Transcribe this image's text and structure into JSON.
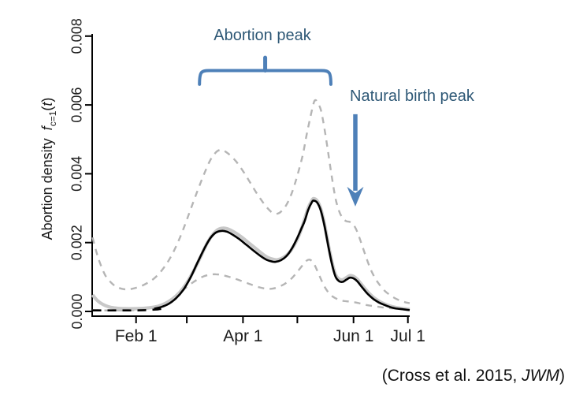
{
  "colors": {
    "accent_text": "#2E5876",
    "accent_shape": "#4E80B8",
    "curve_black": "#000000",
    "curve_gray_mean": "#C8C8C8",
    "ci_dashed_gray": "#B5B5B5",
    "axis": "#000000",
    "tick_label": "#1b1b1b"
  },
  "y_axis": {
    "title": "Abortion density",
    "math_f": "f",
    "math_sub": "c=1",
    "math_open": "(",
    "math_t": "t",
    "math_close": ")",
    "ticks": [
      {
        "value": 0.0,
        "label": "0.000"
      },
      {
        "value": 0.002,
        "label": "0.002"
      },
      {
        "value": 0.004,
        "label": "0.004"
      },
      {
        "value": 0.006,
        "label": "0.006"
      },
      {
        "value": 0.008,
        "label": "0.008"
      }
    ],
    "range": [
      0,
      0.008
    ]
  },
  "x_axis": {
    "ticks": [
      {
        "day": 32,
        "label": "Feb 1"
      },
      {
        "day": 60,
        "label": ""
      },
      {
        "day": 91,
        "label": "Apr 1"
      },
      {
        "day": 121,
        "label": ""
      },
      {
        "day": 152,
        "label": "Jun 1"
      },
      {
        "day": 182,
        "label": "Jul 1"
      }
    ],
    "range_days": [
      8,
      183
    ]
  },
  "annotations": {
    "abortion_peak": {
      "label": "Abortion peak",
      "span_days": [
        67,
        139.5
      ],
      "bar_value": 0.007,
      "end_value": 0.0066,
      "nub_value": 0.00742
    },
    "natural_birth_peak": {
      "label": "Natural birth peak",
      "arrow_day": 153,
      "arrow_from_value": 0.00573,
      "arrow_to_value": 0.00305
    }
  },
  "citation": {
    "prefix": "(Cross et al. 2015, ",
    "journal": "JWM",
    "suffix": ")"
  },
  "chart_data": {
    "type": "line",
    "title": "",
    "xlabel": "",
    "ylabel": "Abortion density f_c=1(t)",
    "x_units": "day of year",
    "ylim": [
      0,
      0.008
    ],
    "grid": false,
    "legend": "none",
    "series": [
      {
        "name": "upper_95ci",
        "style": "dashed",
        "color_key": "ci_dashed_gray",
        "width": 2.4,
        "points": [
          [
            8,
            0.00215
          ],
          [
            10,
            0.00175
          ],
          [
            12,
            0.00142
          ],
          [
            15,
            0.00105
          ],
          [
            18,
            0.00085
          ],
          [
            21,
            0.00072
          ],
          [
            24,
            0.00066
          ],
          [
            27,
            0.00064
          ],
          [
            30,
            0.00066
          ],
          [
            34,
            0.00072
          ],
          [
            38,
            0.00082
          ],
          [
            42,
            0.00096
          ],
          [
            46,
            0.00118
          ],
          [
            50,
            0.00148
          ],
          [
            54,
            0.00188
          ],
          [
            58,
            0.00238
          ],
          [
            62,
            0.00295
          ],
          [
            66,
            0.00352
          ],
          [
            70,
            0.00405
          ],
          [
            73,
            0.0044
          ],
          [
            76,
            0.00462
          ],
          [
            78,
            0.00469
          ],
          [
            80,
            0.00468
          ],
          [
            83,
            0.00458
          ],
          [
            87,
            0.00437
          ],
          [
            91,
            0.00408
          ],
          [
            95,
            0.00374
          ],
          [
            99,
            0.0034
          ],
          [
            103,
            0.0031
          ],
          [
            106,
            0.00292
          ],
          [
            108,
            0.00285
          ],
          [
            110,
            0.00284
          ],
          [
            112,
            0.0029
          ],
          [
            115,
            0.0031
          ],
          [
            118,
            0.00345
          ],
          [
            121,
            0.00395
          ],
          [
            124,
            0.00455
          ],
          [
            126,
            0.0051
          ],
          [
            128,
            0.0056
          ],
          [
            130,
            0.00605
          ],
          [
            131,
            0.00614
          ],
          [
            132,
            0.00608
          ],
          [
            134,
            0.00585
          ],
          [
            136,
            0.0053
          ],
          [
            138,
            0.00462
          ],
          [
            140,
            0.00392
          ],
          [
            142,
            0.0033
          ],
          [
            144,
            0.00292
          ],
          [
            146,
            0.00271
          ],
          [
            148,
            0.00262
          ],
          [
            150,
            0.0026
          ],
          [
            152,
            0.00252
          ],
          [
            154,
            0.00232
          ],
          [
            156,
            0.00203
          ],
          [
            158,
            0.00172
          ],
          [
            160,
            0.00142
          ],
          [
            162,
            0.00116
          ],
          [
            164,
            0.00096
          ],
          [
            166,
            0.0008
          ],
          [
            169,
            0.00061
          ],
          [
            172,
            0.00048
          ],
          [
            175,
            0.00038
          ],
          [
            178,
            0.00031
          ],
          [
            181,
            0.00026
          ],
          [
            183,
            0.00024
          ]
        ]
      },
      {
        "name": "lower_95ci",
        "style": "dashed",
        "color_key": "ci_dashed_gray",
        "width": 2.4,
        "points": [
          [
            8,
            4e-05
          ],
          [
            14,
            3e-05
          ],
          [
            20,
            3e-05
          ],
          [
            26,
            3e-05
          ],
          [
            32,
            4e-05
          ],
          [
            38,
            7e-05
          ],
          [
            43,
            0.00013
          ],
          [
            48,
            0.00024
          ],
          [
            53,
            0.0004
          ],
          [
            58,
            0.00062
          ],
          [
            63,
            0.00083
          ],
          [
            68,
            0.00099
          ],
          [
            72,
            0.00106
          ],
          [
            76,
            0.00108
          ],
          [
            80,
            0.00105
          ],
          [
            85,
            0.00098
          ],
          [
            90,
            0.00089
          ],
          [
            95,
            0.00079
          ],
          [
            100,
            0.0007
          ],
          [
            104,
            0.00066
          ],
          [
            107,
            0.00066
          ],
          [
            110,
            0.0007
          ],
          [
            114,
            0.0008
          ],
          [
            118,
            0.00097
          ],
          [
            121,
            0.00115
          ],
          [
            124,
            0.00135
          ],
          [
            126,
            0.00147
          ],
          [
            128,
            0.0015
          ],
          [
            130,
            0.0014
          ],
          [
            132,
            0.00118
          ],
          [
            134,
            0.00094
          ],
          [
            136,
            0.00072
          ],
          [
            138,
            0.00056
          ],
          [
            140,
            0.00045
          ],
          [
            143,
            0.00036
          ],
          [
            146,
            0.00031
          ],
          [
            149,
            0.00029
          ],
          [
            152,
            0.00027
          ],
          [
            155,
            0.00024
          ],
          [
            158,
            0.0002
          ],
          [
            161,
            0.00017
          ],
          [
            165,
            0.00014
          ],
          [
            169,
            0.00011
          ],
          [
            173,
            9e-05
          ],
          [
            177,
            8e-05
          ],
          [
            180,
            7e-05
          ],
          [
            183,
            7e-05
          ]
        ]
      },
      {
        "name": "posterior_mean_gray",
        "style": "solid",
        "color_key": "curve_gray_mean",
        "width": 4.2,
        "points": [
          [
            8,
            0.00048
          ],
          [
            10,
            0.00035
          ],
          [
            12,
            0.00026
          ],
          [
            15,
            0.00017
          ],
          [
            18,
            0.00012
          ],
          [
            22,
            9e-05
          ],
          [
            26,
            8e-05
          ],
          [
            31,
            8e-05
          ],
          [
            36,
            9e-05
          ],
          [
            40,
            0.00011
          ],
          [
            44,
            0.00015
          ],
          [
            48,
            0.00023
          ],
          [
            52,
            0.00036
          ],
          [
            56,
            0.00055
          ],
          [
            60,
            0.00083
          ],
          [
            64,
            0.0012
          ],
          [
            68,
            0.00163
          ],
          [
            71,
            0.00196
          ],
          [
            74,
            0.00221
          ],
          [
            77,
            0.00237
          ],
          [
            80,
            0.00242
          ],
          [
            83,
            0.00239
          ],
          [
            86,
            0.00231
          ],
          [
            90,
            0.00217
          ],
          [
            94,
            0.002
          ],
          [
            98,
            0.00183
          ],
          [
            102,
            0.00166
          ],
          [
            105,
            0.00156
          ],
          [
            108,
            0.00151
          ],
          [
            110,
            0.0015
          ],
          [
            113,
            0.00156
          ],
          [
            116,
            0.00168
          ],
          [
            119,
            0.0019
          ],
          [
            122,
            0.00222
          ],
          [
            125,
            0.00268
          ],
          [
            127,
            0.00301
          ],
          [
            129,
            0.00322
          ],
          [
            130,
            0.00328
          ],
          [
            132,
            0.00321
          ],
          [
            134,
            0.00297
          ],
          [
            136,
            0.00253
          ],
          [
            138,
            0.00197
          ],
          [
            140,
            0.00146
          ],
          [
            142,
            0.00108
          ],
          [
            144,
            0.00094
          ],
          [
            146,
            0.00092
          ],
          [
            148,
            0.00098
          ],
          [
            150,
            0.00104
          ],
          [
            152,
            0.00102
          ],
          [
            154,
            0.00094
          ],
          [
            156,
            0.00081
          ],
          [
            158,
            0.00068
          ],
          [
            160,
            0.00056
          ],
          [
            163,
            0.00041
          ],
          [
            166,
            0.0003
          ],
          [
            169,
            0.00022
          ],
          [
            172,
            0.00016
          ],
          [
            175,
            0.00012
          ],
          [
            178,
            9e-05
          ],
          [
            181,
            7e-05
          ],
          [
            183,
            6e-05
          ]
        ]
      },
      {
        "name": "median_black_dashed_tail",
        "style": "dashed_black",
        "color_key": "curve_black",
        "width": 2.6,
        "points": [
          [
            8,
            3e-05
          ],
          [
            14,
            3e-05
          ],
          [
            20,
            3e-05
          ],
          [
            26,
            3e-05
          ],
          [
            32,
            3e-05
          ],
          [
            38,
            4e-05
          ],
          [
            44,
            6e-05
          ],
          [
            48,
            9e-05
          ]
        ]
      },
      {
        "name": "median_black",
        "style": "solid",
        "color_key": "curve_black",
        "width": 2.6,
        "points": [
          [
            42,
            8e-05
          ],
          [
            46,
            0.00013
          ],
          [
            50,
            0.00022
          ],
          [
            54,
            0.00038
          ],
          [
            58,
            0.00062
          ],
          [
            62,
            0.00098
          ],
          [
            66,
            0.00143
          ],
          [
            70,
            0.00186
          ],
          [
            73,
            0.00213
          ],
          [
            76,
            0.00229
          ],
          [
            79,
            0.00234
          ],
          [
            82,
            0.00232
          ],
          [
            85,
            0.00224
          ],
          [
            89,
            0.0021
          ],
          [
            93,
            0.00193
          ],
          [
            97,
            0.00176
          ],
          [
            101,
            0.0016
          ],
          [
            104,
            0.0015
          ],
          [
            107,
            0.00145
          ],
          [
            109,
            0.00144
          ],
          [
            112,
            0.00149
          ],
          [
            115,
            0.00161
          ],
          [
            118,
            0.00183
          ],
          [
            121,
            0.00214
          ],
          [
            123,
            0.00238
          ],
          [
            125,
            0.00262
          ],
          [
            127,
            0.00295
          ],
          [
            129,
            0.00317
          ],
          [
            130,
            0.00322
          ],
          [
            132,
            0.00316
          ],
          [
            134,
            0.00292
          ],
          [
            136,
            0.00248
          ],
          [
            138,
            0.00192
          ],
          [
            140,
            0.0014
          ],
          [
            142,
            0.00102
          ],
          [
            144,
            0.00088
          ],
          [
            146,
            0.00086
          ],
          [
            148,
            0.00092
          ],
          [
            150,
            0.00098
          ],
          [
            152,
            0.00096
          ],
          [
            154,
            0.00088
          ],
          [
            156,
            0.00075
          ],
          [
            158,
            0.00062
          ],
          [
            160,
            0.0005
          ],
          [
            163,
            0.00036
          ],
          [
            166,
            0.00026
          ],
          [
            169,
            0.00019
          ],
          [
            172,
            0.00013
          ],
          [
            175,
            9e-05
          ],
          [
            178,
            7e-05
          ],
          [
            181,
            5e-05
          ],
          [
            183,
            4e-05
          ]
        ]
      }
    ],
    "annotations_text": [
      "Abortion peak",
      "Natural birth peak"
    ],
    "peaks": {
      "abortion_peak_1": {
        "day": 79,
        "value": 0.00234
      },
      "abortion_peak_2": {
        "day": 130,
        "value": 0.00322
      },
      "natural_birth_bump": {
        "day": 149,
        "value": 0.00096
      }
    }
  }
}
